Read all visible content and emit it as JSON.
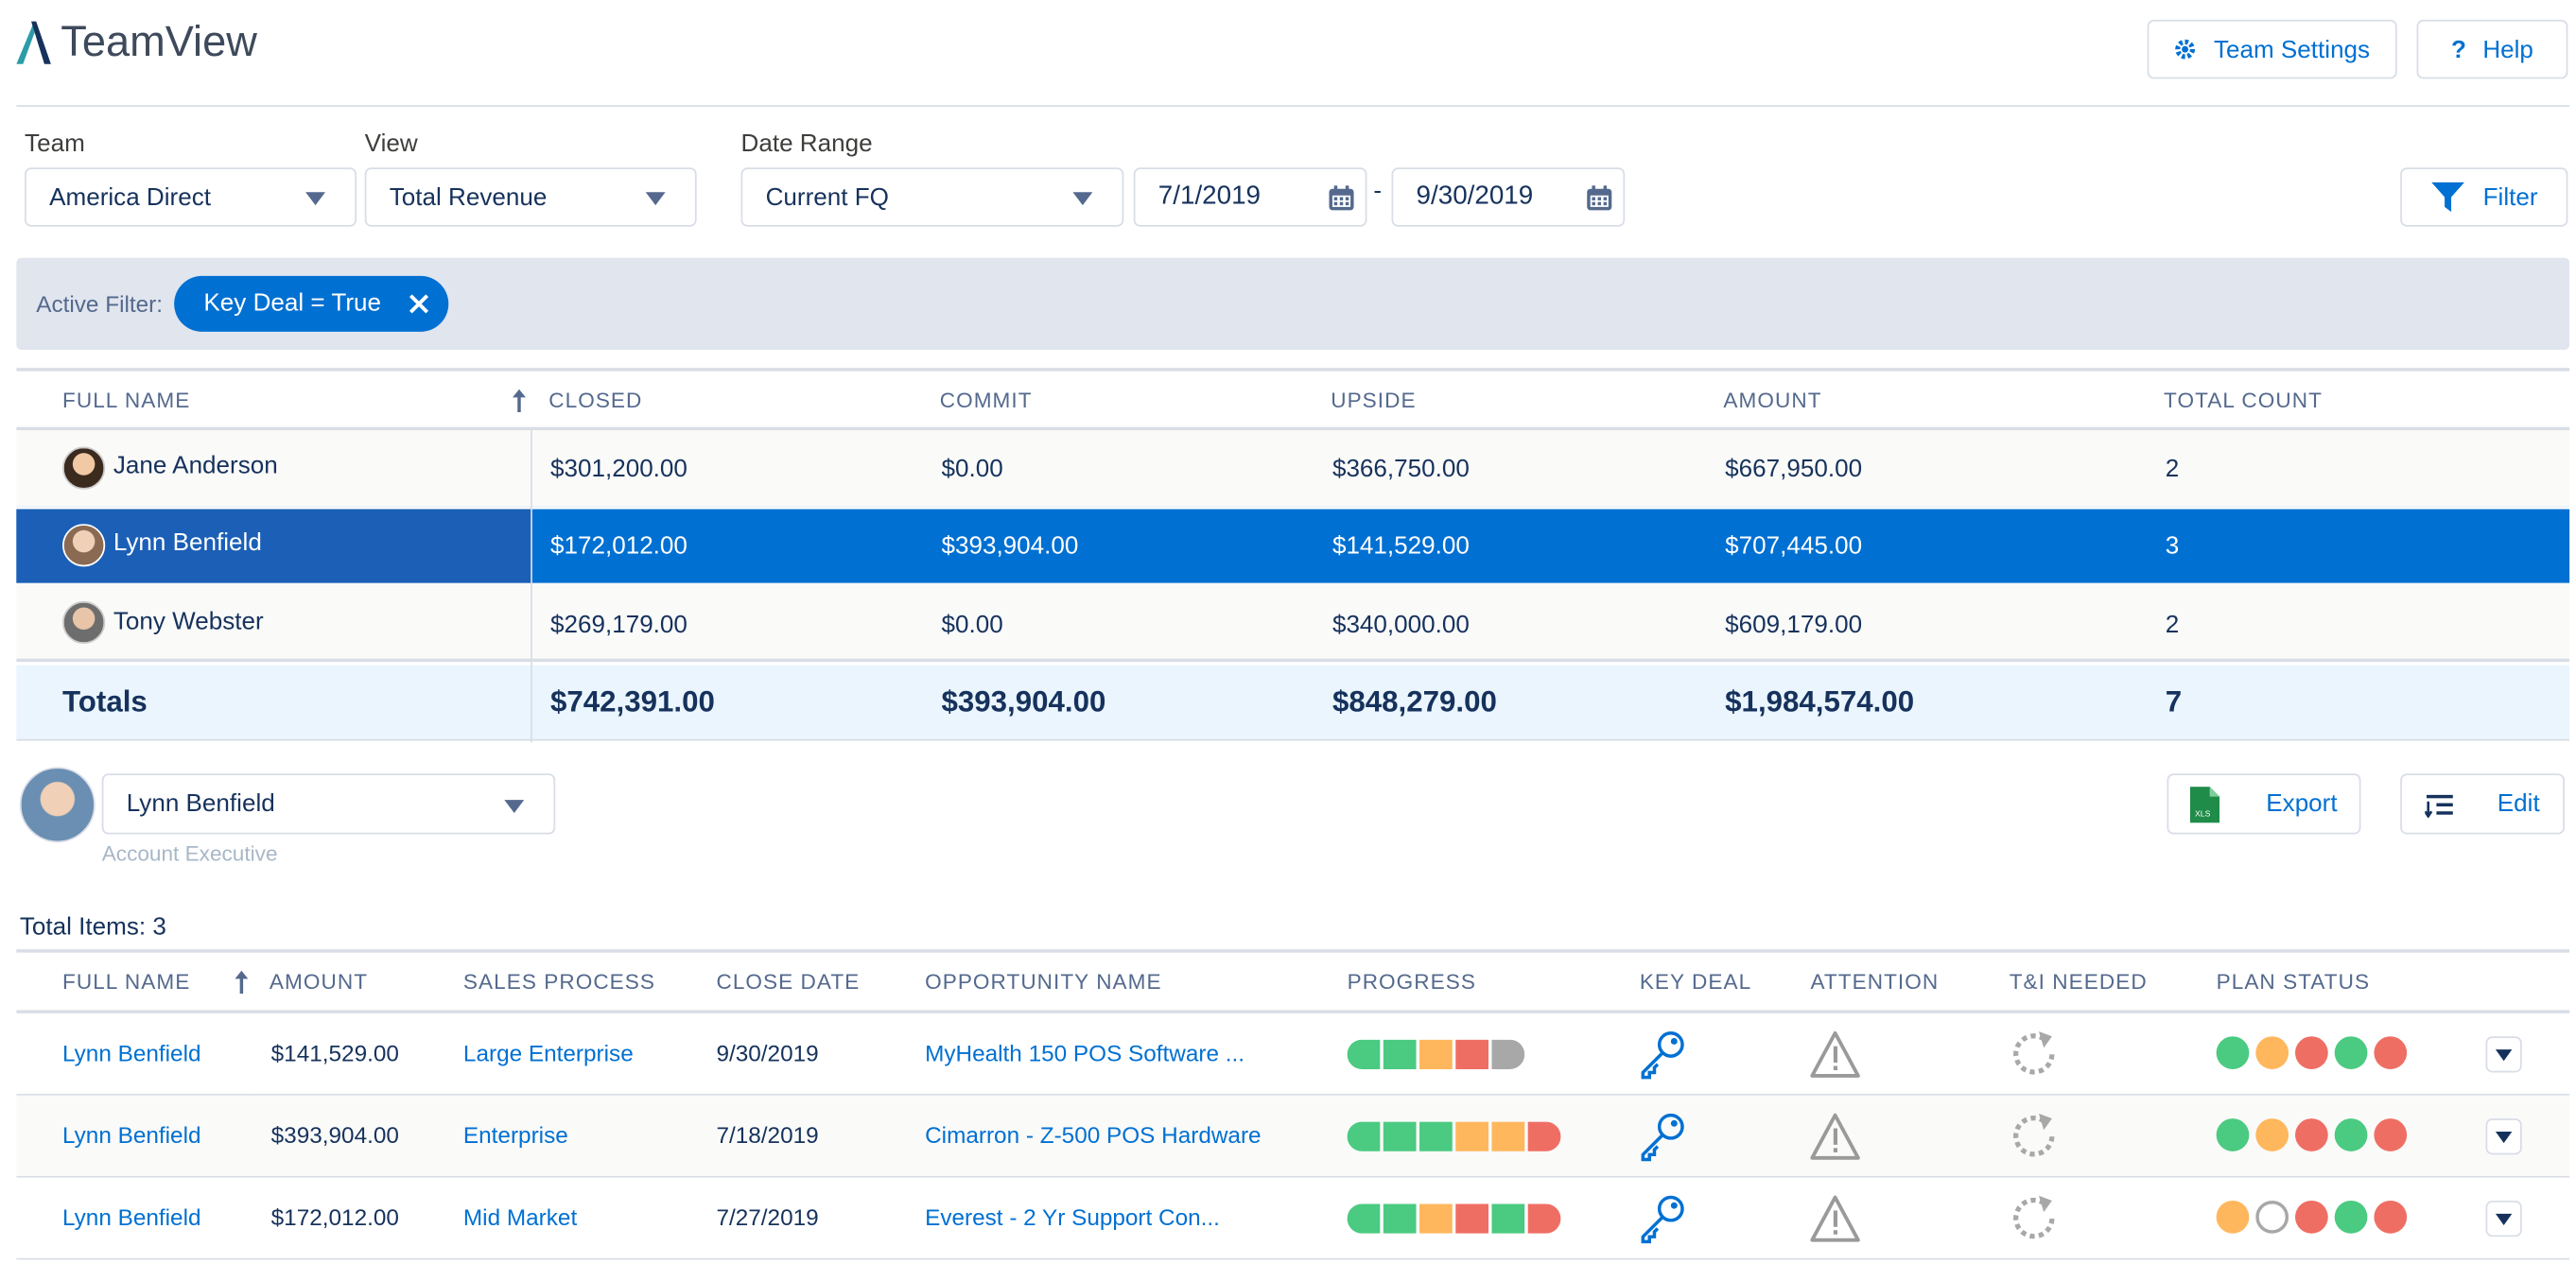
{
  "app": {
    "title": "TeamView"
  },
  "header": {
    "settings_label": "Team Settings",
    "help_label": "Help"
  },
  "filters": {
    "team_label": "Team",
    "team_value": "America Direct",
    "view_label": "View",
    "view_value": "Total Revenue",
    "range_label": "Date Range",
    "range_value": "Current FQ",
    "start_date": "7/1/2019",
    "separator": "-",
    "end_date": "9/30/2019",
    "filter_button": "Filter"
  },
  "active_filter": {
    "label": "Active Filter:",
    "pill": "Key Deal = True"
  },
  "summary": {
    "columns": [
      "FULL NAME",
      "CLOSED",
      "COMMIT",
      "UPSIDE",
      "AMOUNT",
      "TOTAL COUNT"
    ],
    "rows": [
      {
        "name": "Jane Anderson",
        "closed": "$301,200.00",
        "commit": "$0.00",
        "upside": "$366,750.00",
        "amount": "$667,950.00",
        "count": "2"
      },
      {
        "name": "Lynn Benfield",
        "closed": "$172,012.00",
        "commit": "$393,904.00",
        "upside": "$141,529.00",
        "amount": "$707,445.00",
        "count": "3"
      },
      {
        "name": "Tony Webster",
        "closed": "$269,179.00",
        "commit": "$0.00",
        "upside": "$340,000.00",
        "amount": "$609,179.00",
        "count": "2"
      }
    ],
    "totals": {
      "label": "Totals",
      "closed": "$742,391.00",
      "commit": "$393,904.00",
      "upside": "$848,279.00",
      "amount": "$1,984,574.00",
      "count": "7"
    }
  },
  "selected_user": {
    "name": "Lynn Benfield",
    "role": "Account Executive"
  },
  "actions": {
    "export_label": "Export",
    "edit_label": "Edit",
    "xls_text": "XLS"
  },
  "detail": {
    "total_items": "Total Items: 3",
    "columns": [
      "FULL NAME",
      "AMOUNT",
      "SALES PROCESS",
      "CLOSE DATE",
      "OPPORTUNITY NAME",
      "PROGRESS",
      "KEY DEAL",
      "ATTENTION",
      "T&I NEEDED",
      "PLAN STATUS"
    ],
    "rows": [
      {
        "name": "Lynn Benfield",
        "amount": "$141,529.00",
        "process": "Large Enterprise",
        "close_date": "9/30/2019",
        "opportunity": "MyHealth 150 POS Software ...",
        "progress": [
          "green",
          "green",
          "yellow",
          "red",
          "gray"
        ],
        "plan": [
          "green",
          "yellow",
          "red",
          "green",
          "red"
        ]
      },
      {
        "name": "Lynn Benfield",
        "amount": "$393,904.00",
        "process": "Enterprise",
        "close_date": "7/18/2019",
        "opportunity": "Cimarron - Z-500 POS Hardware",
        "progress": [
          "green",
          "green",
          "green",
          "yellow",
          "yellow",
          "red"
        ],
        "plan": [
          "green",
          "yellow",
          "red",
          "green",
          "red"
        ]
      },
      {
        "name": "Lynn Benfield",
        "amount": "$172,012.00",
        "process": "Mid Market",
        "close_date": "7/27/2019",
        "opportunity": "Everest - 2 Yr Support Con...",
        "progress": [
          "green",
          "green",
          "yellow",
          "red",
          "green",
          "red"
        ],
        "plan": [
          "yellow",
          "empty",
          "red",
          "green",
          "red"
        ]
      }
    ]
  },
  "colors": {
    "green": "#4bca81",
    "yellow": "#ffb75d",
    "red": "#ef6e64",
    "gray": "#a8a8a8",
    "selected_row": "#0070d2",
    "selected_name": "#1b5fb7",
    "accent": "#0070d2"
  },
  "icons": [
    "logo-icon",
    "gear-icon",
    "help-icon",
    "caret-down-icon",
    "calendar-icon",
    "filter-icon",
    "close-icon",
    "sort-arrow-icon",
    "avatar",
    "excel-icon",
    "edit-list-icon",
    "key-icon",
    "warning-icon",
    "refresh-icon"
  ]
}
